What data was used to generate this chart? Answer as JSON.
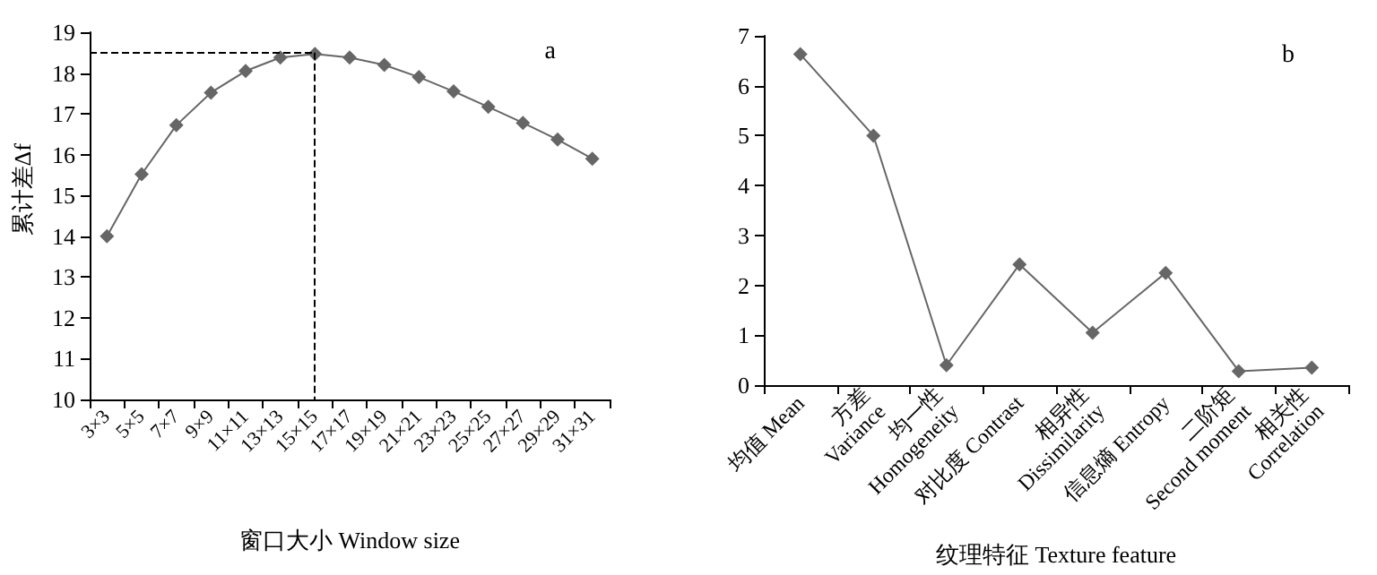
{
  "chart_data": [
    {
      "type": "line",
      "annotations": [
        "a"
      ],
      "xlabel": "窗口大小 Window size",
      "ylabel": "累计差Δf",
      "categories": [
        "3×3",
        "5×5",
        "7×7",
        "9×9",
        "11×11",
        "13×13",
        "15×15",
        "17×17",
        "19×19",
        "21×21",
        "23×23",
        "25×25",
        "27×27",
        "29×29",
        "31×31"
      ],
      "series": [
        {
          "color": "#666666",
          "values": [
            14.0,
            15.52,
            16.72,
            17.52,
            18.05,
            18.38,
            18.47,
            18.38,
            18.2,
            17.9,
            17.55,
            17.17,
            16.78,
            16.37,
            15.9
          ]
        }
      ],
      "ylim": [
        10,
        19
      ],
      "yticks": [
        10,
        11,
        12,
        13,
        14,
        15,
        16,
        17,
        18,
        19
      ],
      "grid": false,
      "marker": "diamond",
      "line_style": "solid",
      "ref_lines": [
        {
          "axis": "y",
          "value": 18.5,
          "color": "#000000",
          "line_style": "dashed"
        },
        {
          "axis": "x",
          "value": "15×15",
          "color": "#000000",
          "line_style": "dashed"
        }
      ]
    },
    {
      "type": "line",
      "annotations": [
        "b"
      ],
      "xlabel": "纹理特征 Texture feature",
      "categories": [
        "均值 Mean",
        "方差\nVariance",
        "均一性\nHomogeneity",
        "对比度 Contrast",
        "相异性\nDissimilarity",
        "信息熵 Entropy",
        "二阶矩\nSecond moment",
        "相关性\nCorrelation"
      ],
      "series": [
        {
          "color": "#666666",
          "values": [
            6.63,
            5.0,
            0.4,
            2.42,
            1.05,
            2.25,
            0.28,
            0.35
          ]
        }
      ],
      "ylim": [
        0,
        7
      ],
      "yticks": [
        0,
        1,
        2,
        3,
        4,
        5,
        6,
        7
      ],
      "grid": false,
      "marker": "diamond",
      "line_style": "solid"
    }
  ]
}
